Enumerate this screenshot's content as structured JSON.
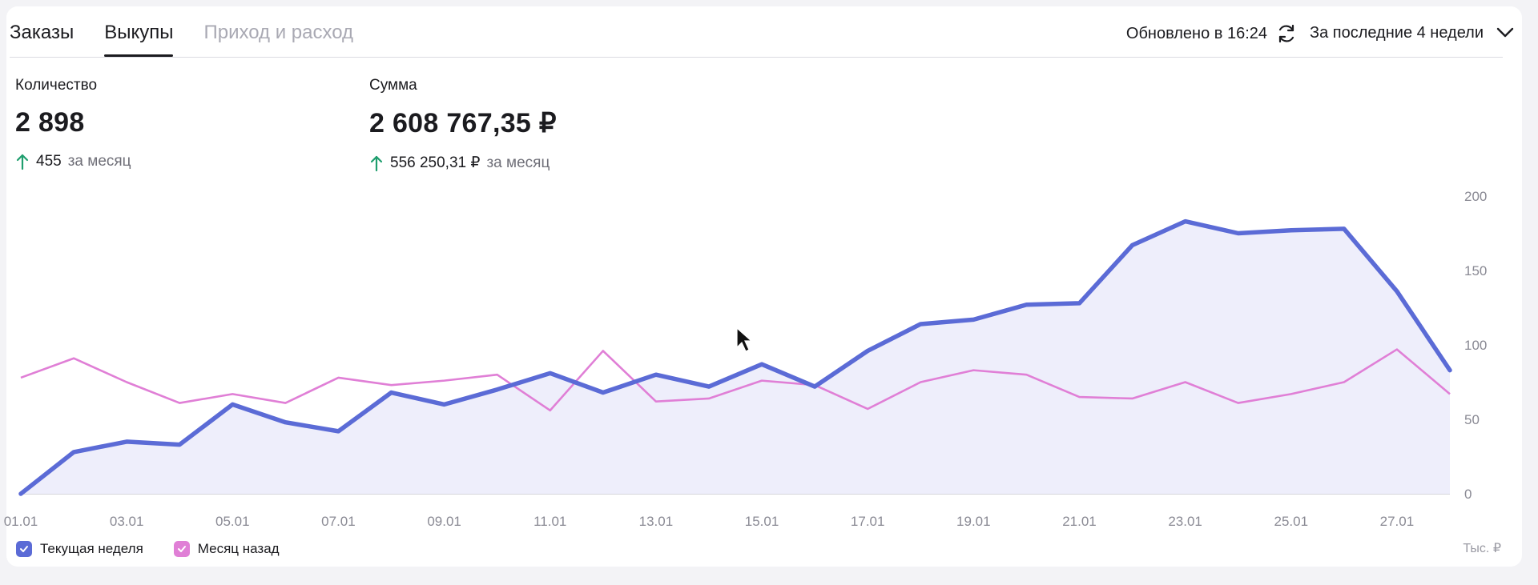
{
  "tabs": [
    {
      "label": "Заказы",
      "state": "normal"
    },
    {
      "label": "Выкупы",
      "state": "active"
    },
    {
      "label": "Приход и расход",
      "state": "disabled"
    }
  ],
  "header": {
    "updated_text": "Обновлено в 16:24",
    "period_label": "За последние 4 недели"
  },
  "stats": {
    "count": {
      "label": "Количество",
      "value": "2 898",
      "delta": "455",
      "delta_suffix": "за месяц"
    },
    "sum": {
      "label": "Сумма",
      "value": "2 608 767,35 ₽",
      "delta": "556 250,31 ₽",
      "delta_suffix": "за месяц"
    }
  },
  "legend": {
    "current": "Текущая неделя",
    "prev": "Месяц назад",
    "unit": "Тыс. ₽"
  },
  "colors": {
    "current": "#5b6bd6",
    "current_fill": "#eeeefb",
    "prev": "#e07fd6",
    "up_arrow": "#1f9e6e"
  },
  "chart_data": {
    "type": "line",
    "x": [
      "01.01",
      "02.01",
      "03.01",
      "04.01",
      "05.01",
      "06.01",
      "07.01",
      "08.01",
      "09.01",
      "10.01",
      "11.01",
      "12.01",
      "13.01",
      "14.01",
      "15.01",
      "16.01",
      "17.01",
      "18.01",
      "19.01",
      "20.01",
      "21.01",
      "22.01",
      "23.01",
      "24.01",
      "25.01",
      "26.01",
      "27.01",
      "28.01"
    ],
    "x_tick_labels": [
      "01.01",
      "03.01",
      "05.01",
      "07.01",
      "09.01",
      "11.01",
      "13.01",
      "15.01",
      "17.01",
      "19.01",
      "21.01",
      "23.01",
      "25.01",
      "27.01"
    ],
    "y_ticks": [
      0,
      50,
      100,
      150,
      200
    ],
    "ylim": [
      0,
      200
    ],
    "series": [
      {
        "name": "Текущая неделя",
        "values": [
          0,
          28,
          35,
          33,
          60,
          48,
          42,
          68,
          60,
          70,
          81,
          68,
          80,
          72,
          87,
          72,
          96,
          114,
          117,
          127,
          128,
          167,
          183,
          175,
          177,
          178,
          136,
          83
        ]
      },
      {
        "name": "Месяц назад",
        "values": [
          78,
          91,
          75,
          61,
          67,
          61,
          78,
          73,
          76,
          80,
          56,
          96,
          62,
          64,
          76,
          73,
          57,
          75,
          83,
          80,
          65,
          64,
          75,
          61,
          67,
          75,
          97,
          67
        ]
      }
    ]
  }
}
